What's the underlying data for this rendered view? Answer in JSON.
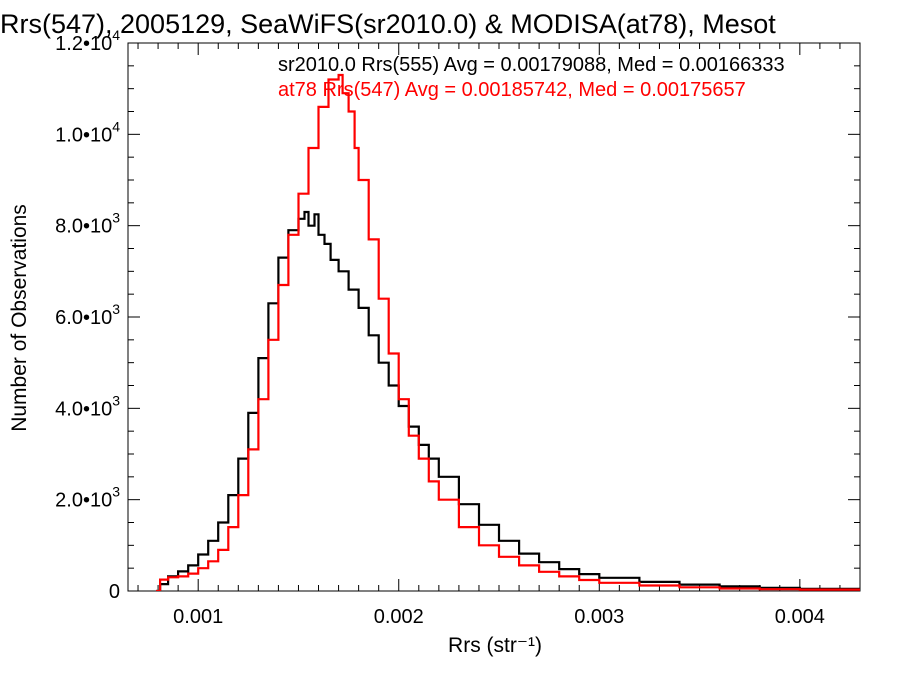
{
  "chart_data": {
    "type": "line",
    "title": "Rrs(547), 2005129, SeaWiFS(sr2010.0) & MODISA(at78), Mesot",
    "xlabel": "Rrs (str⁻¹)",
    "ylabel": "Number of Observations",
    "xlim": [
      0.00065,
      0.0043
    ],
    "ylim": [
      0,
      12000
    ],
    "x_ticks": [
      {
        "value": 0.001,
        "label": "0.001"
      },
      {
        "value": 0.002,
        "label": "0.002"
      },
      {
        "value": 0.003,
        "label": "0.003"
      },
      {
        "value": 0.004,
        "label": "0.004"
      }
    ],
    "y_ticks": [
      {
        "value": 0,
        "mant": "0",
        "exp": ""
      },
      {
        "value": 2000,
        "mant": "2.0•10",
        "exp": "3"
      },
      {
        "value": 4000,
        "mant": "4.0•10",
        "exp": "3"
      },
      {
        "value": 6000,
        "mant": "6.0•10",
        "exp": "3"
      },
      {
        "value": 8000,
        "mant": "8.0•10",
        "exp": "3"
      },
      {
        "value": 10000,
        "mant": "1.0•10",
        "exp": "4"
      },
      {
        "value": 12000,
        "mant": "1.2•10",
        "exp": "4"
      }
    ],
    "grid": false,
    "step": true,
    "legend_position": "top-right",
    "series": [
      {
        "name": "sr2010.0 Rrs(555) Avg = 0.00179088, Med = 0.00166333",
        "color": "#000000",
        "x": [
          0.00079,
          0.00081,
          0.00085,
          0.0009,
          0.00095,
          0.001,
          0.00105,
          0.0011,
          0.00115,
          0.0012,
          0.00125,
          0.0013,
          0.00135,
          0.0014,
          0.00145,
          0.0015,
          0.00153,
          0.00155,
          0.00158,
          0.0016,
          0.00163,
          0.00166,
          0.0017,
          0.00175,
          0.0018,
          0.00185,
          0.0019,
          0.00195,
          0.002,
          0.00205,
          0.0021,
          0.00215,
          0.0022,
          0.0023,
          0.0024,
          0.0025,
          0.0026,
          0.0027,
          0.0028,
          0.0029,
          0.003,
          0.0032,
          0.0034,
          0.0036,
          0.0038,
          0.004,
          0.0043
        ],
        "y": [
          0,
          150,
          320,
          430,
          560,
          800,
          1100,
          1500,
          2100,
          2900,
          3900,
          5100,
          6300,
          7300,
          7900,
          8150,
          8300,
          8000,
          8250,
          7800,
          7600,
          7250,
          7000,
          6600,
          6200,
          5600,
          5000,
          4500,
          4050,
          3600,
          3200,
          2900,
          2500,
          1900,
          1450,
          1100,
          820,
          630,
          480,
          370,
          290,
          200,
          140,
          100,
          70,
          45,
          25
        ]
      },
      {
        "name": "at78 Rrs(547) Avg = 0.00185742, Med = 0.00175657",
        "color": "#ff0000",
        "x": [
          0.00079,
          0.00081,
          0.00085,
          0.0009,
          0.00095,
          0.001,
          0.00105,
          0.0011,
          0.00115,
          0.0012,
          0.00125,
          0.0013,
          0.00135,
          0.0014,
          0.00145,
          0.0015,
          0.00155,
          0.0016,
          0.00165,
          0.0017,
          0.00172,
          0.00175,
          0.00178,
          0.0018,
          0.00185,
          0.0019,
          0.00195,
          0.002,
          0.00205,
          0.0021,
          0.00215,
          0.0022,
          0.0023,
          0.0024,
          0.0025,
          0.0026,
          0.0027,
          0.0028,
          0.0029,
          0.003,
          0.0032,
          0.0034,
          0.0036,
          0.0038,
          0.004,
          0.0043
        ],
        "y": [
          0,
          250,
          300,
          320,
          380,
          500,
          650,
          900,
          1400,
          2100,
          3100,
          4200,
          5500,
          6700,
          7800,
          8700,
          9700,
          10600,
          11200,
          11300,
          10900,
          10500,
          9700,
          9000,
          7700,
          6400,
          5200,
          4200,
          3400,
          2900,
          2400,
          2000,
          1400,
          1000,
          750,
          560,
          420,
          320,
          240,
          180,
          120,
          80,
          55,
          40,
          30,
          20
        ]
      }
    ]
  }
}
